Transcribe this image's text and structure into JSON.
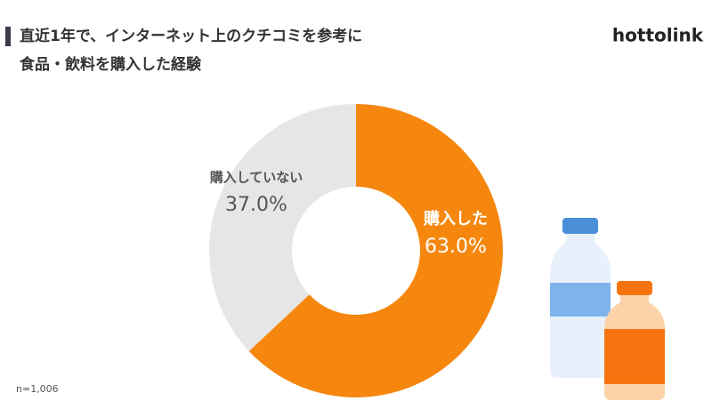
{
  "logo": "hottolink",
  "chart_data": {
    "type": "donut",
    "title": [
      "直近1年で、インターネット上のクチコミを参考に",
      "食品・飲料を購入した経験"
    ],
    "categories": [
      "購入した",
      "購入していない"
    ],
    "values": [
      63.0,
      37.0
    ],
    "value_labels": [
      "63.0%",
      "37.0%"
    ],
    "colors": [
      "#f5870f",
      "#e6e6e6"
    ],
    "note": "n=1,006"
  }
}
